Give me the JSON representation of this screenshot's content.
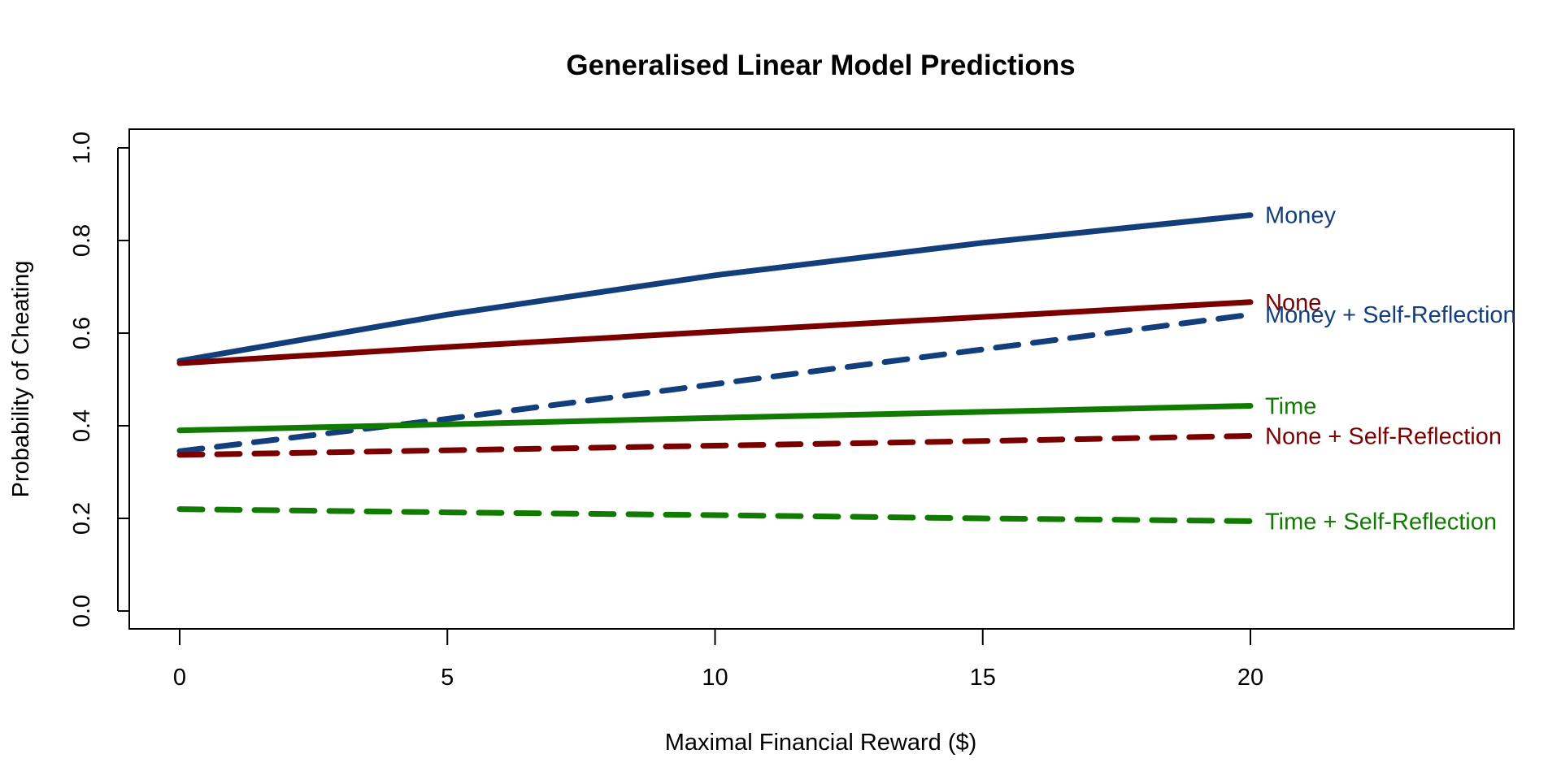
{
  "chart_data": {
    "type": "line",
    "title": "Generalised Linear Model Predictions",
    "xlabel": "Maximal Financial Reward ($)",
    "ylabel": "Probability of Cheating",
    "xlim": [
      0,
      24
    ],
    "ylim": [
      0,
      1
    ],
    "x_ticks": [
      "0",
      "5",
      "10",
      "15",
      "20"
    ],
    "y_ticks": [
      "0.0",
      "0.2",
      "0.4",
      "0.6",
      "0.8",
      "1.0"
    ],
    "grid": false,
    "legend": "direct labels at line ends",
    "series": [
      {
        "name": "Money",
        "color": "#133E7C",
        "style": "solid",
        "x": [
          0,
          5,
          10,
          15,
          20
        ],
        "y": [
          0.54,
          0.64,
          0.725,
          0.795,
          0.855
        ]
      },
      {
        "name": "None",
        "color": "#7A0000",
        "style": "solid",
        "x": [
          0,
          5,
          10,
          15,
          20
        ],
        "y": [
          0.535,
          0.57,
          0.603,
          0.635,
          0.667
        ]
      },
      {
        "name": "Money + Self-Reflection",
        "color": "#133E7C",
        "style": "dashed",
        "x": [
          0,
          5,
          10,
          15,
          20
        ],
        "y": [
          0.345,
          0.415,
          0.49,
          0.565,
          0.64
        ]
      },
      {
        "name": "Time",
        "color": "#117A00",
        "style": "solid",
        "x": [
          0,
          5,
          10,
          15,
          20
        ],
        "y": [
          0.39,
          0.403,
          0.417,
          0.43,
          0.443
        ]
      },
      {
        "name": "None + Self-Reflection",
        "color": "#7A0000",
        "style": "dashed",
        "x": [
          0,
          5,
          10,
          15,
          20
        ],
        "y": [
          0.337,
          0.347,
          0.357,
          0.367,
          0.378
        ]
      },
      {
        "name": "Time + Self-Reflection",
        "color": "#117A00",
        "style": "dashed",
        "x": [
          0,
          5,
          10,
          15,
          20
        ],
        "y": [
          0.22,
          0.213,
          0.207,
          0.2,
          0.194
        ]
      }
    ]
  }
}
